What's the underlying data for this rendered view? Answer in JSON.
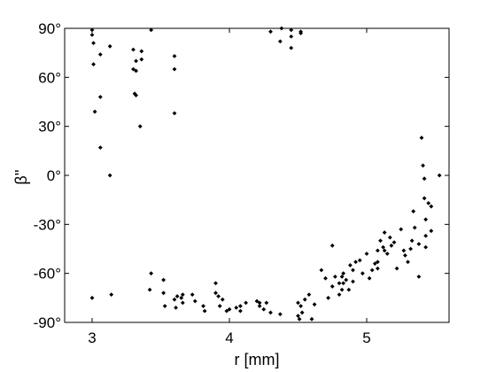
{
  "chart_data": {
    "type": "scatter",
    "xlabel": "r [mm]",
    "ylabel": "β''",
    "xlim": [
      2.8,
      5.6
    ],
    "ylim": [
      -90,
      90
    ],
    "xticks": [
      3,
      4,
      5
    ],
    "xtick_labels": [
      "3",
      "4",
      "5"
    ],
    "yticks": [
      90,
      60,
      30,
      0,
      -30,
      -60,
      -90
    ],
    "ytick_labels": [
      "90°",
      "60°",
      "30°",
      "0°",
      "-30°",
      "-60°",
      "-90°"
    ],
    "grid": false,
    "legend": "none",
    "marker_color": "#000000",
    "series": [
      {
        "points": [
          [
            3.0,
            89
          ],
          [
            3.0,
            86
          ],
          [
            3.01,
            81
          ],
          [
            3.01,
            68
          ],
          [
            3.06,
            74
          ],
          [
            3.13,
            79
          ],
          [
            3.06,
            48
          ],
          [
            3.02,
            39
          ],
          [
            3.06,
            17
          ],
          [
            3.13,
            0
          ],
          [
            3.0,
            -75
          ],
          [
            3.14,
            -73
          ],
          [
            3.3,
            77
          ],
          [
            3.3,
            65
          ],
          [
            3.32,
            70
          ],
          [
            3.32,
            64
          ],
          [
            3.31,
            50
          ],
          [
            3.32,
            49
          ],
          [
            3.36,
            76
          ],
          [
            3.36,
            71
          ],
          [
            3.35,
            30
          ],
          [
            3.43,
            89
          ],
          [
            3.6,
            73
          ],
          [
            3.6,
            65
          ],
          [
            3.6,
            38
          ],
          [
            3.43,
            -60
          ],
          [
            3.42,
            -70
          ],
          [
            3.52,
            -64
          ],
          [
            3.52,
            -72
          ],
          [
            3.53,
            -80
          ],
          [
            3.6,
            -76
          ],
          [
            3.62,
            -74
          ],
          [
            3.61,
            -81
          ],
          [
            3.66,
            -73
          ],
          [
            3.66,
            -78
          ],
          [
            3.65,
            -75
          ],
          [
            3.73,
            -73
          ],
          [
            3.75,
            -77
          ],
          [
            3.81,
            -80
          ],
          [
            3.82,
            -83
          ],
          [
            3.9,
            -66
          ],
          [
            3.9,
            -72
          ],
          [
            3.92,
            -74
          ],
          [
            3.93,
            -80
          ],
          [
            3.95,
            -76
          ],
          [
            3.98,
            -83
          ],
          [
            4.0,
            -82
          ],
          [
            4.05,
            -81
          ],
          [
            4.08,
            -83
          ],
          [
            4.08,
            -80
          ],
          [
            4.12,
            -78
          ],
          [
            4.2,
            -77
          ],
          [
            4.22,
            -78
          ],
          [
            4.22,
            -80
          ],
          [
            4.25,
            -82
          ],
          [
            4.27,
            -78
          ],
          [
            4.3,
            -84
          ],
          [
            4.37,
            -85
          ],
          [
            4.3,
            88
          ],
          [
            4.38,
            90
          ],
          [
            4.37,
            82
          ],
          [
            4.45,
            78
          ],
          [
            4.45,
            85
          ],
          [
            4.45,
            89
          ],
          [
            4.52,
            87
          ],
          [
            4.52,
            88
          ],
          [
            4.5,
            -78
          ],
          [
            4.52,
            -80
          ],
          [
            4.53,
            -84
          ],
          [
            4.5,
            -86
          ],
          [
            4.51,
            -88
          ],
          [
            4.55,
            -76
          ],
          [
            4.58,
            -73
          ],
          [
            4.6,
            -88
          ],
          [
            4.62,
            -79
          ],
          [
            4.67,
            -58
          ],
          [
            4.7,
            -63
          ],
          [
            4.72,
            -75
          ],
          [
            4.75,
            -68
          ],
          [
            4.75,
            -43
          ],
          [
            4.77,
            -62
          ],
          [
            4.8,
            -66
          ],
          [
            4.8,
            -73
          ],
          [
            4.82,
            -62
          ],
          [
            4.82,
            -70
          ],
          [
            4.83,
            -60
          ],
          [
            4.83,
            -66
          ],
          [
            4.85,
            -64
          ],
          [
            4.87,
            -70
          ],
          [
            4.88,
            -55
          ],
          [
            4.9,
            -58
          ],
          [
            4.9,
            -65
          ],
          [
            4.92,
            -53
          ],
          [
            4.95,
            -52
          ],
          [
            4.97,
            -60
          ],
          [
            5.0,
            -48
          ],
          [
            5.02,
            -63
          ],
          [
            5.04,
            -58
          ],
          [
            5.06,
            -54
          ],
          [
            5.08,
            -46
          ],
          [
            5.08,
            -53
          ],
          [
            5.08,
            -57
          ],
          [
            5.1,
            -40
          ],
          [
            5.12,
            -44
          ],
          [
            5.13,
            -35
          ],
          [
            5.13,
            -46
          ],
          [
            5.15,
            -48
          ],
          [
            5.17,
            -38
          ],
          [
            5.18,
            -43
          ],
          [
            5.2,
            -41
          ],
          [
            5.22,
            -57
          ],
          [
            5.25,
            -33
          ],
          [
            5.27,
            -46
          ],
          [
            5.28,
            -49
          ],
          [
            5.3,
            -53
          ],
          [
            5.32,
            -45
          ],
          [
            5.33,
            -40
          ],
          [
            5.34,
            -22
          ],
          [
            5.35,
            -32
          ],
          [
            5.38,
            -42
          ],
          [
            5.38,
            -62
          ],
          [
            5.4,
            23
          ],
          [
            5.41,
            6
          ],
          [
            5.42,
            -2
          ],
          [
            5.42,
            -14
          ],
          [
            5.43,
            -27
          ],
          [
            5.43,
            -37
          ],
          [
            5.43,
            -44
          ],
          [
            5.45,
            -17
          ],
          [
            5.47,
            -34
          ],
          [
            5.47,
            -19
          ],
          [
            5.53,
            0
          ]
        ]
      }
    ]
  }
}
